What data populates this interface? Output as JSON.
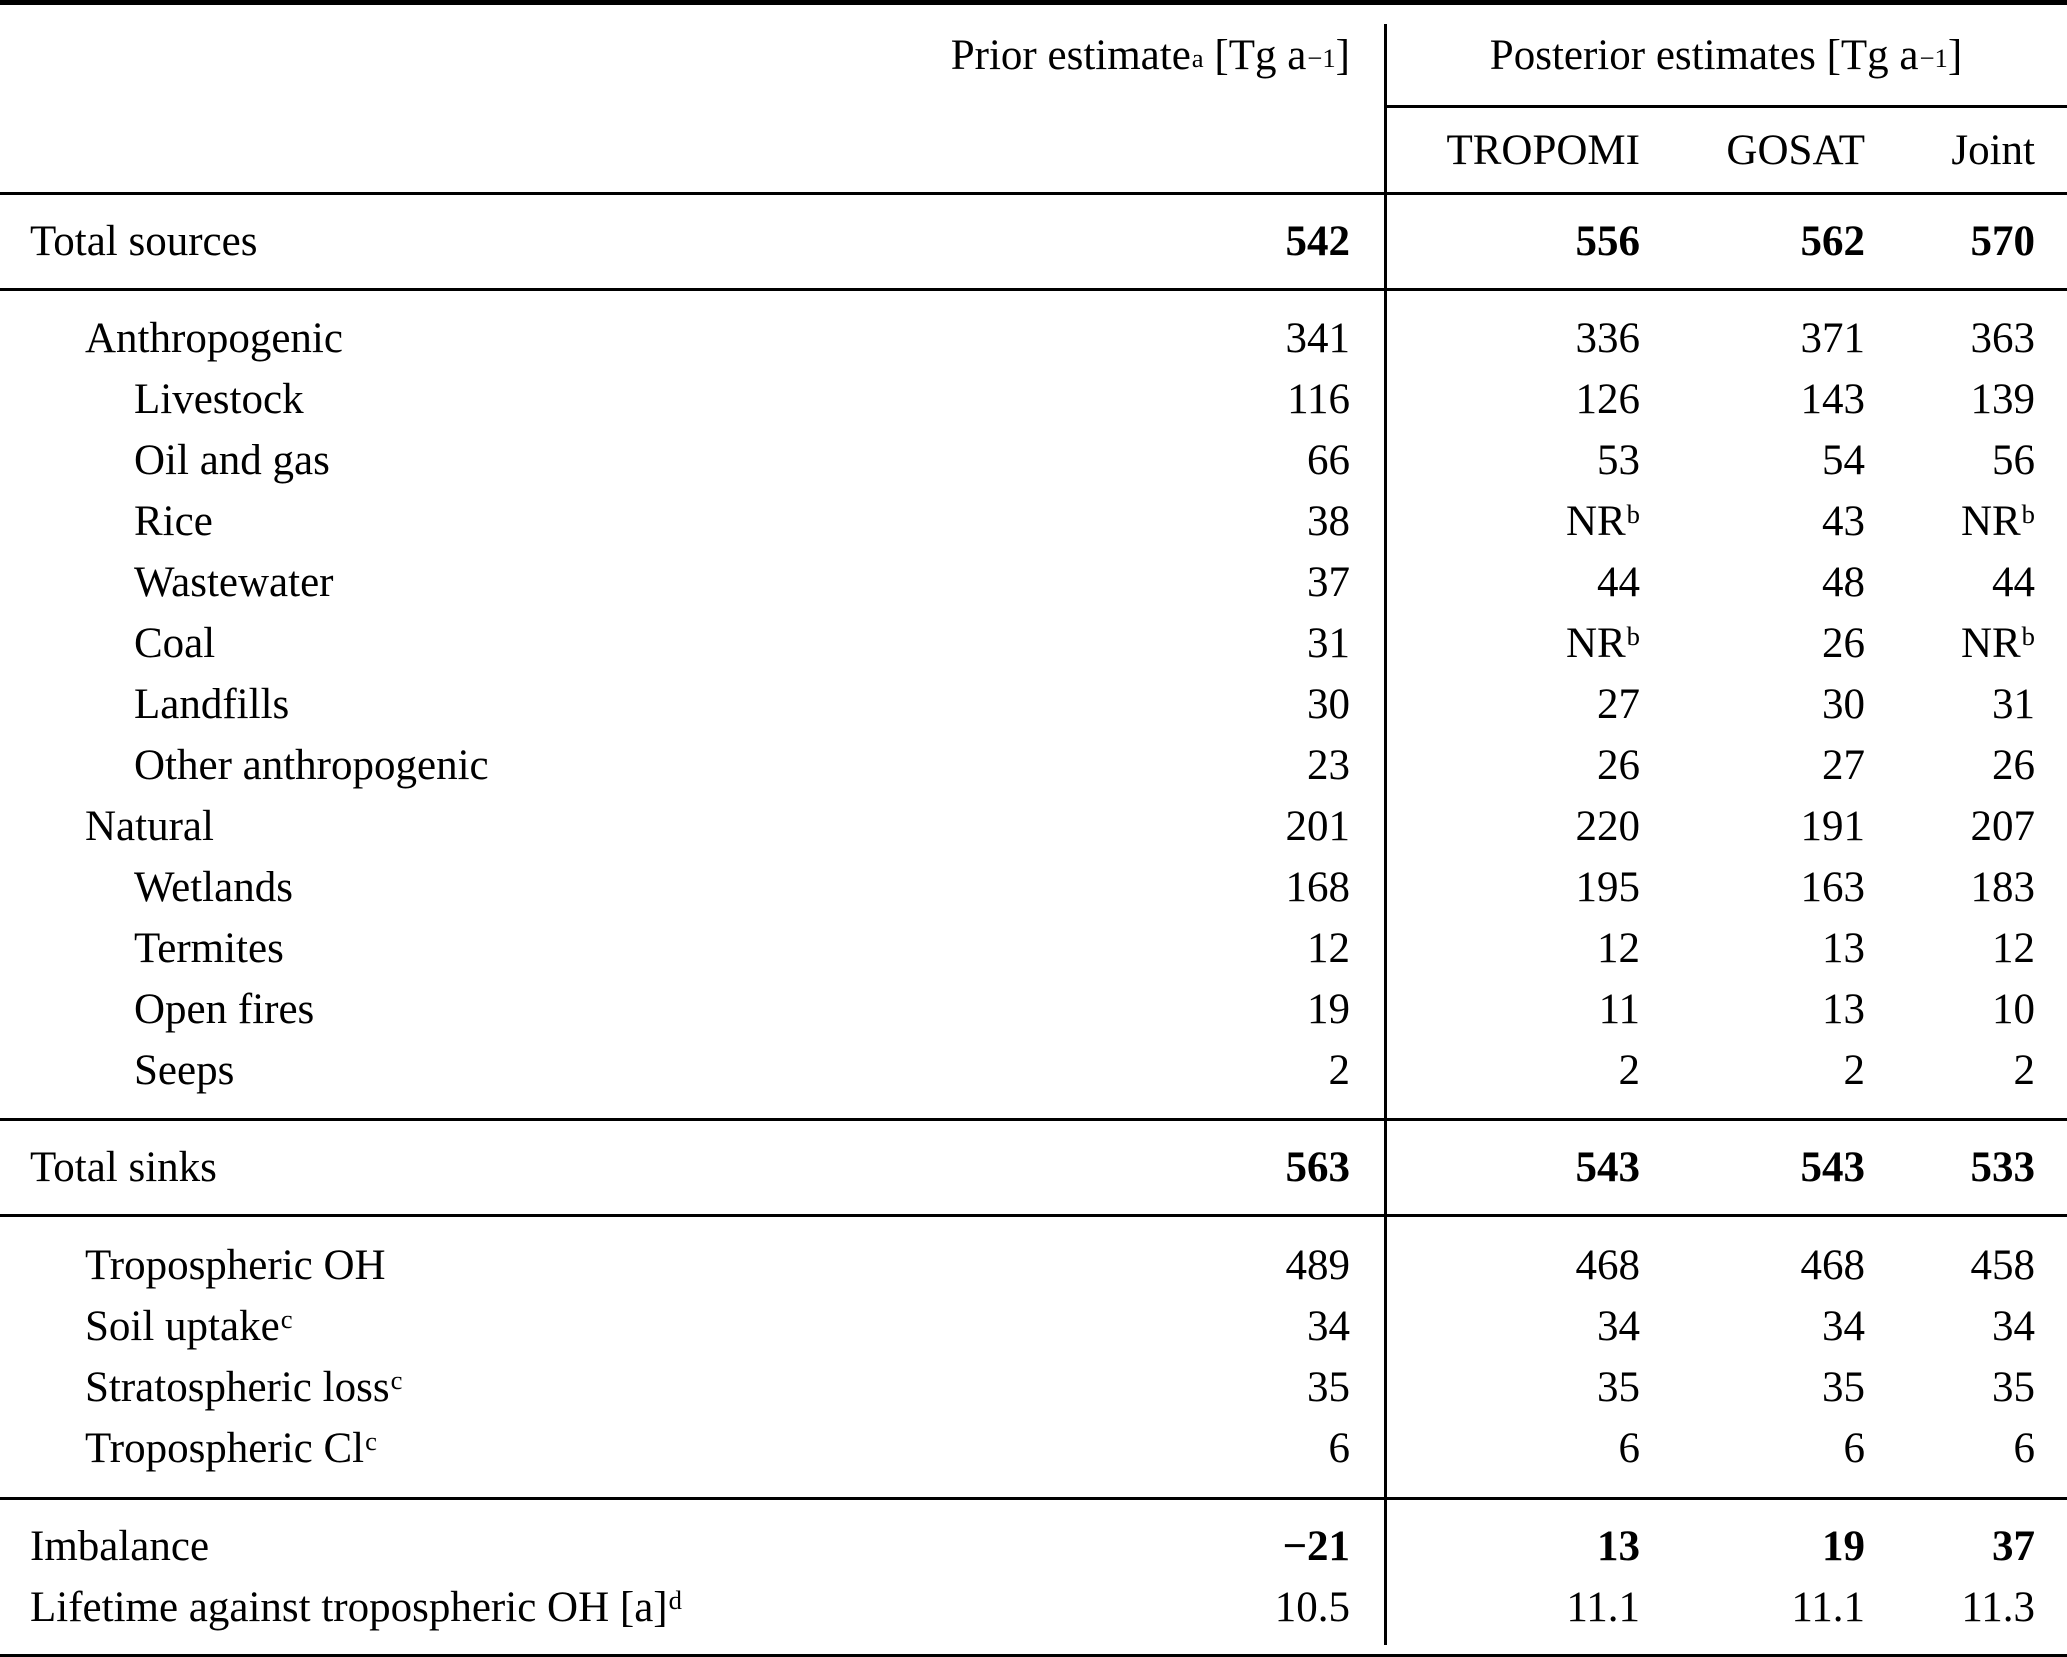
{
  "table": {
    "header": {
      "prior": {
        "text": "Prior estimate",
        "sup": "a",
        "unit_open": " [Tg a",
        "exp": "−1",
        "unit_close": "]"
      },
      "posterior": {
        "text": "Posterior estimates",
        "unit_open": " [Tg a",
        "exp": "−1",
        "unit_close": "]"
      },
      "columns": [
        "TROPOMI",
        "GOSAT",
        "Joint"
      ]
    },
    "sections": [
      {
        "kind": "total",
        "rows": [
          {
            "label": "Total sources",
            "indent": 0,
            "emphasis": true,
            "cells": [
              {
                "v": "542"
              },
              {
                "v": "556"
              },
              {
                "v": "562"
              },
              {
                "v": "570"
              }
            ]
          }
        ]
      },
      {
        "kind": "sources-detail",
        "rows": [
          {
            "label": "Anthropogenic",
            "indent": 1,
            "emphasis": false,
            "cells": [
              {
                "v": "341"
              },
              {
                "v": "336"
              },
              {
                "v": "371"
              },
              {
                "v": "363"
              }
            ]
          },
          {
            "label": "Livestock",
            "indent": 2,
            "emphasis": false,
            "cells": [
              {
                "v": "116"
              },
              {
                "v": "126"
              },
              {
                "v": "143"
              },
              {
                "v": "139"
              }
            ]
          },
          {
            "label": "Oil and gas",
            "indent": 2,
            "emphasis": false,
            "cells": [
              {
                "v": "66"
              },
              {
                "v": "53"
              },
              {
                "v": "54"
              },
              {
                "v": "56"
              }
            ]
          },
          {
            "label": "Rice",
            "indent": 2,
            "emphasis": false,
            "cells": [
              {
                "v": "38"
              },
              {
                "v": "NR",
                "sup": "b"
              },
              {
                "v": "43"
              },
              {
                "v": "NR",
                "sup": "b"
              }
            ]
          },
          {
            "label": "Wastewater",
            "indent": 2,
            "emphasis": false,
            "cells": [
              {
                "v": "37"
              },
              {
                "v": "44"
              },
              {
                "v": "48"
              },
              {
                "v": "44"
              }
            ]
          },
          {
            "label": "Coal",
            "indent": 2,
            "emphasis": false,
            "cells": [
              {
                "v": "31"
              },
              {
                "v": "NR",
                "sup": "b"
              },
              {
                "v": "26"
              },
              {
                "v": "NR",
                "sup": "b"
              }
            ]
          },
          {
            "label": "Landfills",
            "indent": 2,
            "emphasis": false,
            "cells": [
              {
                "v": "30"
              },
              {
                "v": "27"
              },
              {
                "v": "30"
              },
              {
                "v": "31"
              }
            ]
          },
          {
            "label": "Other anthropogenic",
            "indent": 2,
            "emphasis": false,
            "cells": [
              {
                "v": "23"
              },
              {
                "v": "26"
              },
              {
                "v": "27"
              },
              {
                "v": "26"
              }
            ]
          },
          {
            "label": "Natural",
            "indent": 1,
            "emphasis": false,
            "cells": [
              {
                "v": "201"
              },
              {
                "v": "220"
              },
              {
                "v": "191"
              },
              {
                "v": "207"
              }
            ]
          },
          {
            "label": "Wetlands",
            "indent": 2,
            "emphasis": false,
            "cells": [
              {
                "v": "168"
              },
              {
                "v": "195"
              },
              {
                "v": "163"
              },
              {
                "v": "183"
              }
            ]
          },
          {
            "label": "Termites",
            "indent": 2,
            "emphasis": false,
            "cells": [
              {
                "v": "12"
              },
              {
                "v": "12"
              },
              {
                "v": "13"
              },
              {
                "v": "12"
              }
            ]
          },
          {
            "label": "Open fires",
            "indent": 2,
            "emphasis": false,
            "cells": [
              {
                "v": "19"
              },
              {
                "v": "11"
              },
              {
                "v": "13"
              },
              {
                "v": "10"
              }
            ]
          },
          {
            "label": "Seeps",
            "indent": 2,
            "emphasis": false,
            "cells": [
              {
                "v": "2"
              },
              {
                "v": "2"
              },
              {
                "v": "2"
              },
              {
                "v": "2"
              }
            ]
          }
        ]
      },
      {
        "kind": "total",
        "rows": [
          {
            "label": "Total sinks",
            "indent": 0,
            "emphasis": true,
            "cells": [
              {
                "v": "563"
              },
              {
                "v": "543"
              },
              {
                "v": "543"
              },
              {
                "v": "533"
              }
            ]
          }
        ]
      },
      {
        "kind": "sinks-detail",
        "rows": [
          {
            "label": "Tropospheric OH",
            "indent": 1,
            "emphasis": false,
            "cells": [
              {
                "v": "489"
              },
              {
                "v": "468"
              },
              {
                "v": "468"
              },
              {
                "v": "458"
              }
            ]
          },
          {
            "label": "Soil uptake",
            "label_sup": "c",
            "indent": 1,
            "emphasis": false,
            "cells": [
              {
                "v": "34"
              },
              {
                "v": "34"
              },
              {
                "v": "34"
              },
              {
                "v": "34"
              }
            ]
          },
          {
            "label": "Stratospheric loss",
            "label_sup": "c",
            "indent": 1,
            "emphasis": false,
            "cells": [
              {
                "v": "35"
              },
              {
                "v": "35"
              },
              {
                "v": "35"
              },
              {
                "v": "35"
              }
            ]
          },
          {
            "label": "Tropospheric Cl",
            "label_sup": "c",
            "indent": 1,
            "emphasis": false,
            "cells": [
              {
                "v": "6"
              },
              {
                "v": "6"
              },
              {
                "v": "6"
              },
              {
                "v": "6"
              }
            ]
          }
        ]
      },
      {
        "kind": "footer",
        "rows": [
          {
            "label": "Imbalance",
            "indent": 0,
            "emphasis": true,
            "cells": [
              {
                "v": "−21"
              },
              {
                "v": "13"
              },
              {
                "v": "19"
              },
              {
                "v": "37"
              }
            ]
          },
          {
            "label": "Lifetime against tropospheric OH [a]",
            "label_sup": "d",
            "indent": 0,
            "emphasis": false,
            "cells": [
              {
                "v": "10.5"
              },
              {
                "v": "11.1"
              },
              {
                "v": "11.1"
              },
              {
                "v": "11.3"
              }
            ]
          }
        ]
      }
    ]
  }
}
